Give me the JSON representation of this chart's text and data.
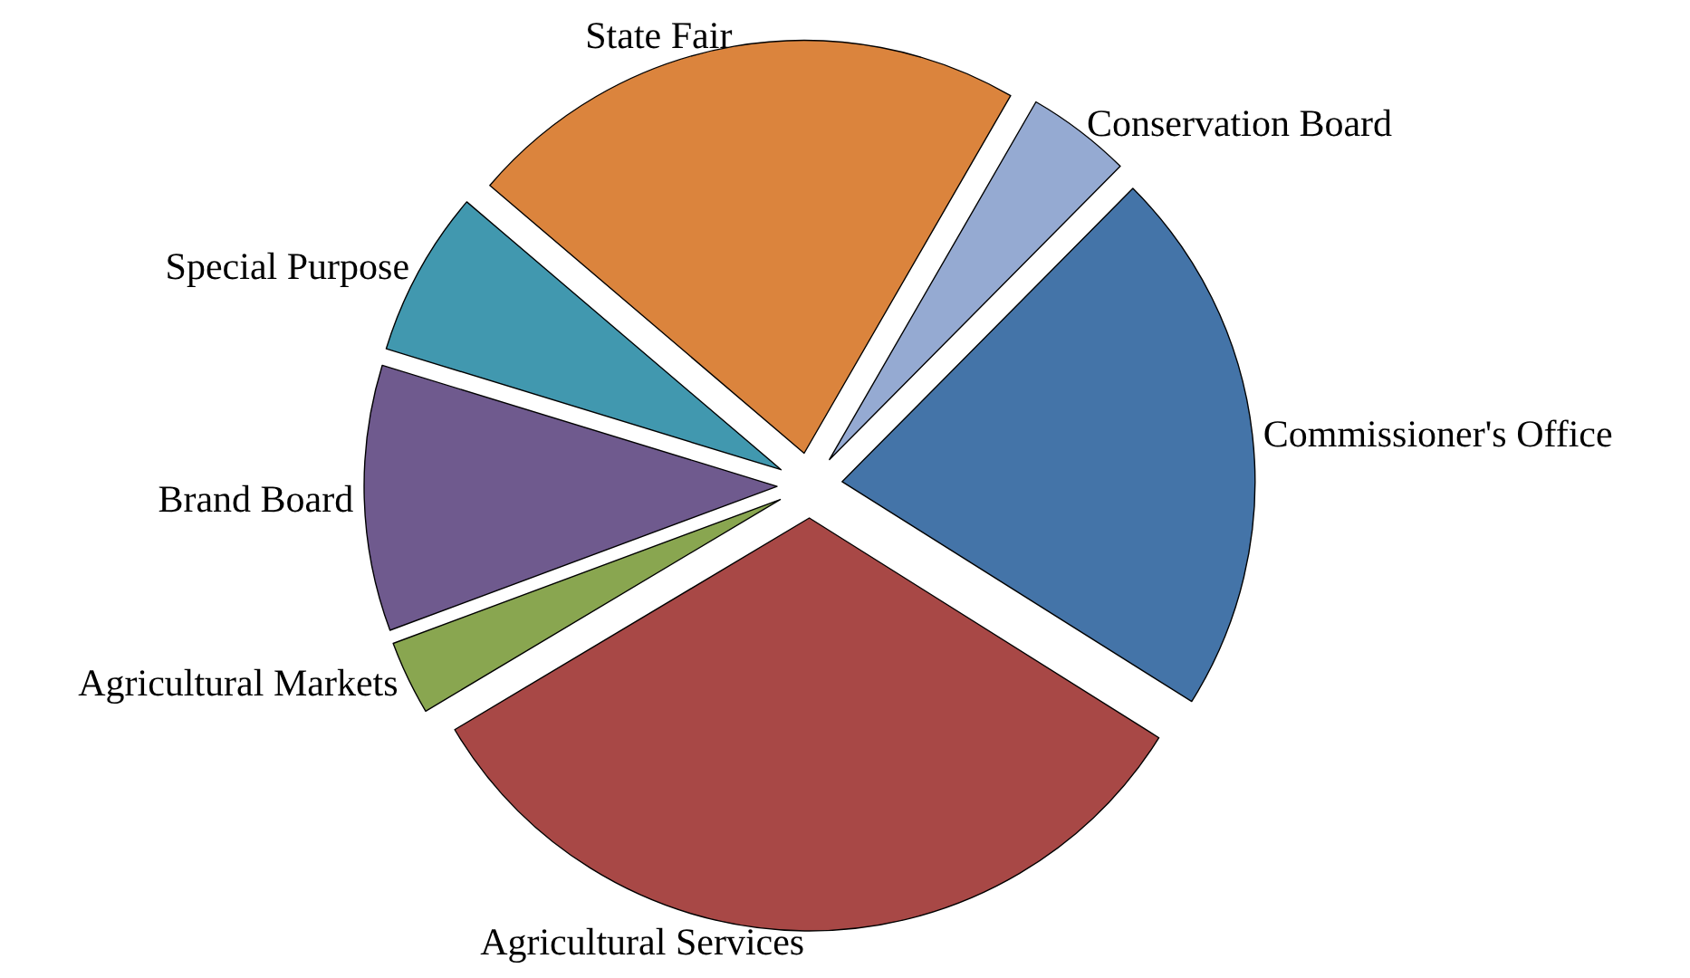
{
  "chart_data": {
    "type": "pie",
    "categories": [
      "Conservation Board",
      "Commissioner's Office",
      "Agricultural Services",
      "Agricultural Markets",
      "Brand Board",
      "Special Purpose",
      "State Fair"
    ],
    "values": [
      4.1,
      21.5,
      32.5,
      2.9,
      10.4,
      6.5,
      22.1
    ],
    "colors": [
      "#95aad2",
      "#4474a8",
      "#a84846",
      "#89a650",
      "#6f5a8e",
      "#4198af",
      "#db843d"
    ]
  }
}
